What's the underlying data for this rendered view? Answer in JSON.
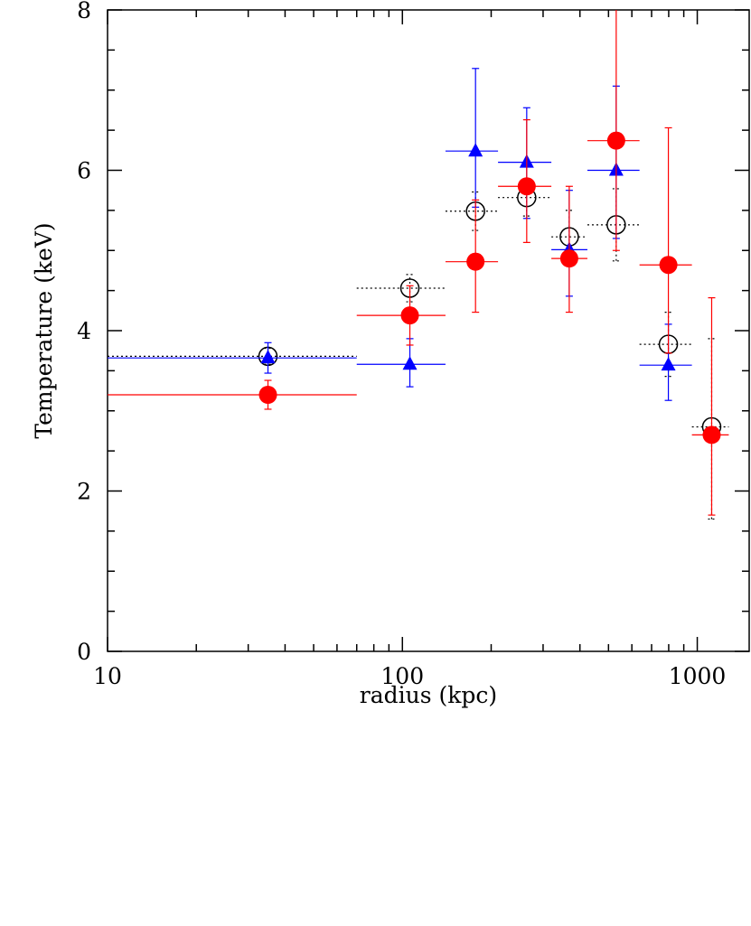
{
  "chart_data": {
    "type": "scatter",
    "xlabel": "radius (kpc)",
    "ylabel": "Temperature (keV)",
    "xscale": "log",
    "xlim": [
      10,
      1500
    ],
    "ylim": [
      0,
      8
    ],
    "xticks": [
      10,
      100,
      1000
    ],
    "xminorticks": [
      20,
      30,
      40,
      50,
      60,
      70,
      80,
      90,
      200,
      300,
      400,
      500,
      600,
      700,
      800,
      900
    ],
    "yticks": [
      0,
      2,
      4,
      6,
      8
    ],
    "yminorticks": [
      0.5,
      1,
      1.5,
      2.5,
      3,
      3.5,
      4.5,
      5,
      5.5,
      6.5,
      7,
      7.5
    ],
    "series": [
      {
        "marker": "open-circle",
        "color": "#000000",
        "dashed": true,
        "x": [
          35,
          106,
          177,
          264,
          368,
          531,
          798,
          1119
        ],
        "x_low": [
          10,
          70,
          140,
          211,
          320,
          424,
          637,
          959
        ],
        "x_high": [
          70,
          140,
          211,
          320,
          424,
          637,
          959,
          1279
        ],
        "values": [
          3.68,
          4.53,
          5.49,
          5.66,
          5.17,
          5.32,
          3.83,
          2.8
        ],
        "err_low": [
          0.1,
          0.17,
          0.24,
          0.23,
          0.33,
          0.45,
          0.4,
          1.15
        ],
        "err_high": [
          0.1,
          0.17,
          0.24,
          0.23,
          0.33,
          0.45,
          0.4,
          1.1
        ]
      },
      {
        "marker": "triangle",
        "color": "#0000ff",
        "dashed": false,
        "x": [
          35,
          106,
          177,
          264,
          368,
          531,
          798
        ],
        "x_low": [
          10,
          70,
          140,
          211,
          320,
          424,
          637
        ],
        "x_high": [
          70,
          140,
          211,
          320,
          424,
          637,
          959
        ],
        "values": [
          3.66,
          3.58,
          6.24,
          6.1,
          5.01,
          6.0,
          3.57
        ],
        "err_low": [
          0.19,
          0.28,
          0.7,
          0.7,
          0.58,
          0.85,
          0.44
        ],
        "err_high": [
          0.19,
          0.32,
          1.03,
          0.68,
          0.74,
          1.05,
          0.51
        ]
      },
      {
        "marker": "filled-circle",
        "color": "#ff0000",
        "dashed": false,
        "x": [
          35,
          106,
          177,
          264,
          368,
          531,
          798,
          1119
        ],
        "x_low": [
          10,
          70,
          140,
          211,
          320,
          424,
          637,
          959
        ],
        "x_high": [
          70,
          140,
          211,
          320,
          424,
          637,
          959,
          1279
        ],
        "values": [
          3.2,
          4.19,
          4.86,
          5.8,
          4.9,
          6.37,
          4.82,
          2.7
        ],
        "err_low": [
          0.18,
          0.37,
          0.63,
          0.7,
          0.67,
          1.37,
          1.1,
          1.0
        ],
        "err_high": [
          0.18,
          0.37,
          0.77,
          0.83,
          0.9,
          1.9,
          1.71,
          1.71
        ]
      }
    ]
  }
}
